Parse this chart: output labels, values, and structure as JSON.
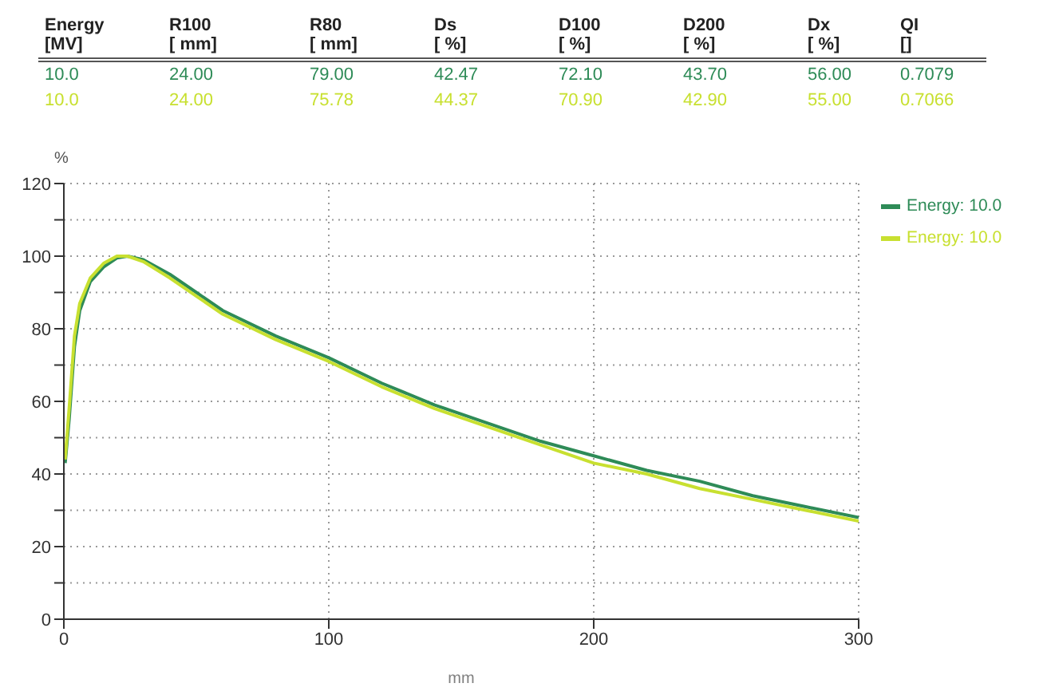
{
  "chart_data": {
    "type": "line",
    "xlabel": "mm",
    "ylabel": "%",
    "annotations": [
      "Energy\n[MV]",
      "R100\n[ mm]",
      "R80\n[ mm]",
      "Ds\n[ %]",
      "D100\n[ %]",
      "D200\n[ %]",
      "Dx\n[ %]",
      "QI\n[]",
      "10.0",
      "24.00",
      "79.00",
      "42.47",
      "72.10",
      "43.70",
      "56.00",
      "0.7079",
      "10.0",
      "24.00",
      "75.78",
      "44.37",
      "70.90",
      "42.90",
      "55.00",
      "0.7066"
    ],
    "series": [
      {
        "name": "Energy: 10.0",
        "color": "#2e8b57",
        "x": [
          0.5,
          2,
          4,
          6,
          10,
          15,
          20,
          24,
          30,
          40,
          50,
          60,
          80,
          100,
          120,
          140,
          160,
          180,
          200,
          220,
          240,
          260,
          280,
          300
        ],
        "values": [
          43,
          55,
          75,
          85,
          93,
          97,
          99.5,
          100,
          99,
          95,
          90,
          85,
          78,
          72,
          65,
          59,
          54,
          49,
          45,
          41,
          38,
          34,
          31,
          28
        ]
      },
      {
        "name": "Energy: 10.0",
        "color": "#c8e030",
        "x": [
          0.5,
          2,
          4,
          6,
          10,
          15,
          20,
          24,
          30,
          40,
          50,
          60,
          80,
          100,
          120,
          140,
          160,
          180,
          200,
          220,
          240,
          260,
          280,
          300
        ],
        "values": [
          44,
          58,
          78,
          87,
          94,
          98,
          100,
          100,
          98.5,
          94,
          89,
          84,
          77,
          71,
          64,
          58,
          53,
          48,
          43,
          40,
          36,
          33,
          30,
          27
        ]
      }
    ],
    "xlim": [
      0,
      300
    ],
    "xticks": [
      0,
      100,
      200,
      300
    ],
    "ylim": [
      0,
      120
    ],
    "yticks": [
      0,
      {
        "value": 10,
        "label": null
      },
      20,
      {
        "value": 30,
        "label": null
      },
      40,
      {
        "value": 50,
        "label": null
      },
      60,
      {
        "value": 70,
        "label": null
      },
      80,
      {
        "value": 90,
        "label": null
      },
      100,
      {
        "value": 110,
        "label": null
      },
      120
    ],
    "grid": true,
    "legend": "right",
    "marker": "none",
    "line_style": "solid"
  }
}
